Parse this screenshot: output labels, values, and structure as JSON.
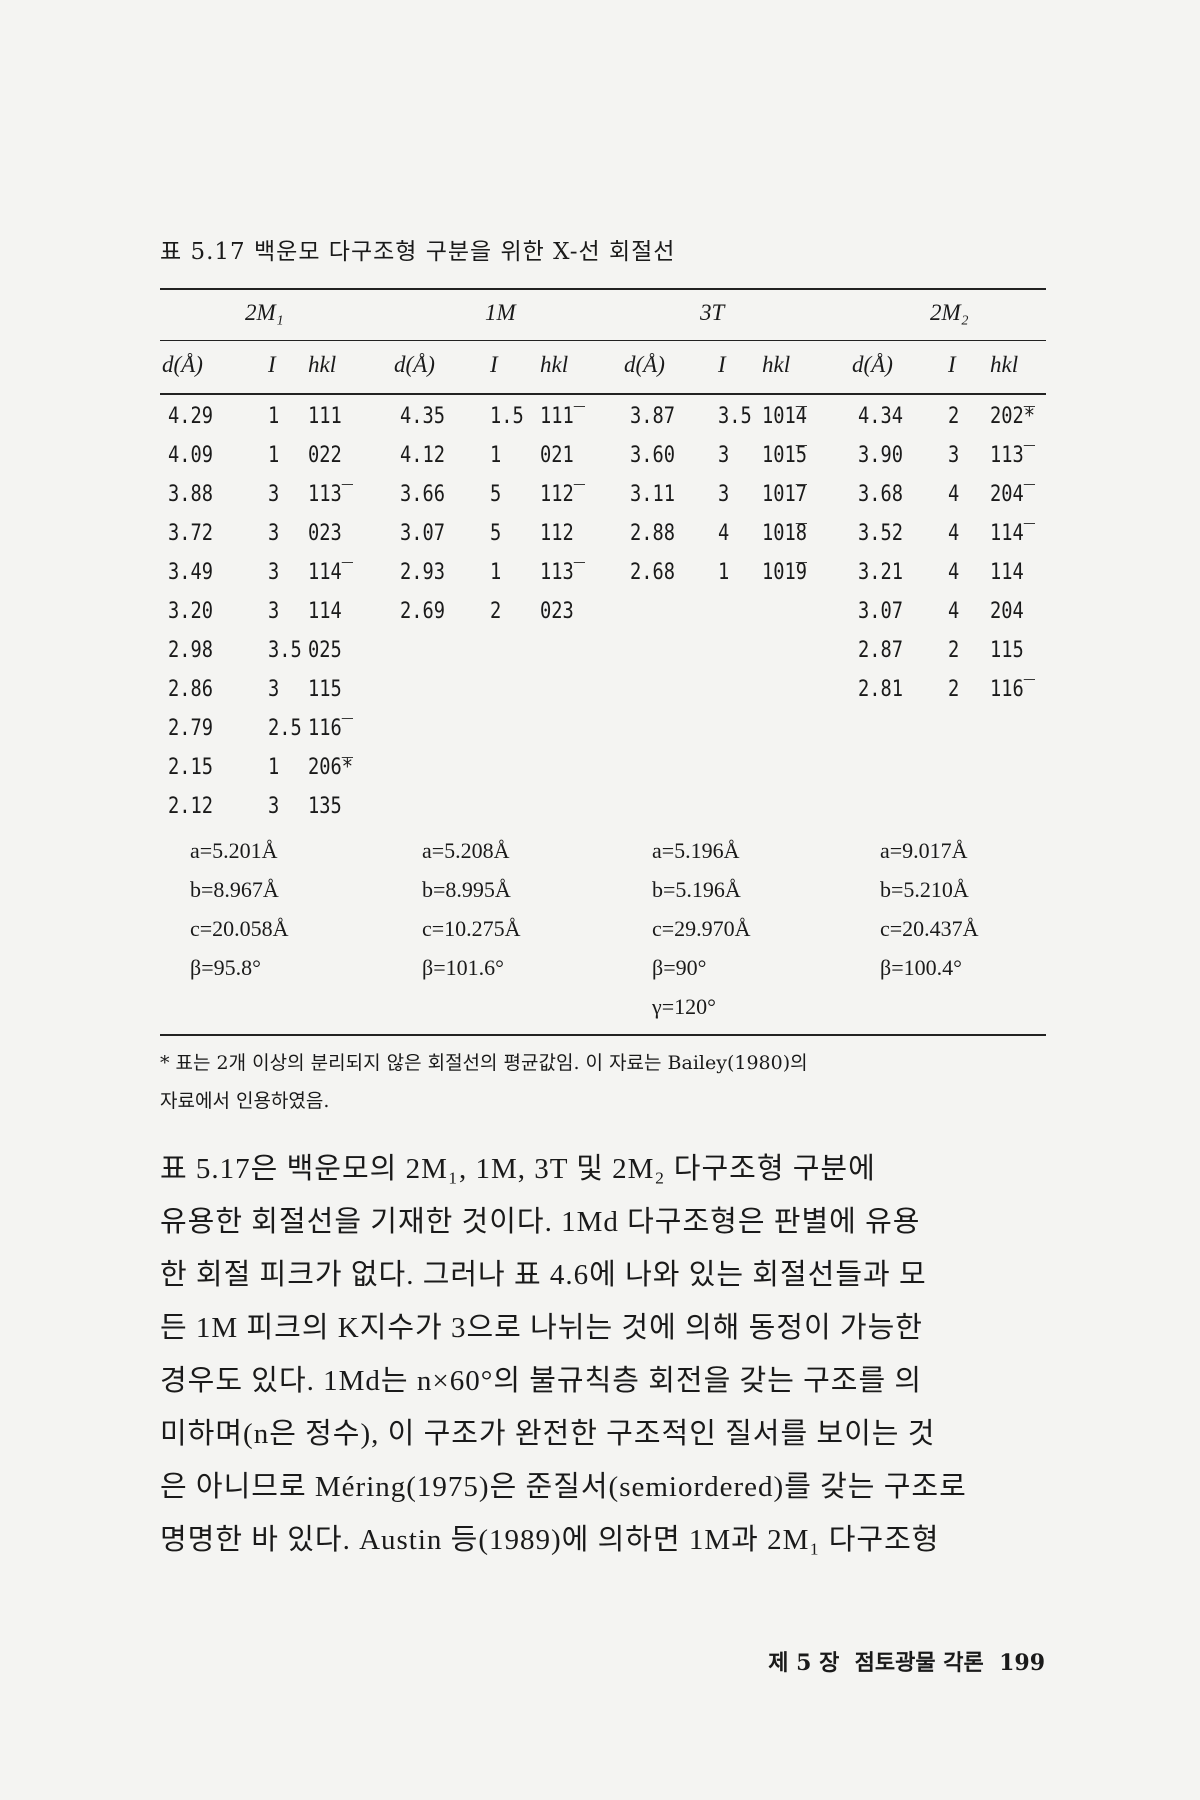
{
  "caption": "표 5.17 백운모 다구조형 구분을 위한 X-선 회절선",
  "table": {
    "groups": [
      "2M₁",
      "1M",
      "3T",
      "2M₂"
    ],
    "col_headers": [
      "d(Å)",
      "I",
      "hkl"
    ],
    "columns": [
      {
        "rows": [
          [
            "4.29",
            "1",
            "111"
          ],
          [
            "4.09",
            "1",
            "022"
          ],
          [
            "3.88",
            "3",
            "113̅"
          ],
          [
            "3.72",
            "3",
            "023"
          ],
          [
            "3.49",
            "3",
            "114̅"
          ],
          [
            "3.20",
            "3",
            "114"
          ],
          [
            "2.98",
            "3.5",
            "025"
          ],
          [
            "2.86",
            "3",
            "115"
          ],
          [
            "2.79",
            "2.5",
            "116̅"
          ],
          [
            "2.15",
            "1",
            "206̅*"
          ],
          [
            "2.12",
            "3",
            "135"
          ]
        ],
        "params": [
          "a=5.201Å",
          "b=8.967Å",
          "c=20.058Å",
          "β=95.8°"
        ]
      },
      {
        "rows": [
          [
            "4.35",
            "1.5",
            "111̅"
          ],
          [
            "4.12",
            "1",
            "021"
          ],
          [
            "3.66",
            "5",
            "112̅"
          ],
          [
            "3.07",
            "5",
            "112"
          ],
          [
            "2.93",
            "1",
            "113̅"
          ],
          [
            "2.69",
            "2",
            "023"
          ]
        ],
        "params": [
          "a=5.208Å",
          "b=8.995Å",
          "c=10.275Å",
          "β=101.6°"
        ]
      },
      {
        "rows": [
          [
            "3.87",
            "3.5",
            "101̅4"
          ],
          [
            "3.60",
            "3",
            "101̅5"
          ],
          [
            "3.11",
            "3",
            "101̅7"
          ],
          [
            "2.88",
            "4",
            "101̅8"
          ],
          [
            "2.68",
            "1",
            "101̅9"
          ]
        ],
        "params": [
          "a=5.196Å",
          "b=5.196Å",
          "c=29.970Å",
          "β=90°",
          "γ=120°"
        ]
      },
      {
        "rows": [
          [
            "4.34",
            "2",
            "202̅*"
          ],
          [
            "3.90",
            "3",
            "113̅"
          ],
          [
            "3.68",
            "4",
            "204̅"
          ],
          [
            "3.52",
            "4",
            "114̅"
          ],
          [
            "3.21",
            "4",
            "114"
          ],
          [
            "3.07",
            "4",
            "204"
          ],
          [
            "2.87",
            "2",
            "115"
          ],
          [
            "2.81",
            "2",
            "116̅"
          ]
        ],
        "params": [
          "a=9.017Å",
          "b=5.210Å",
          "c=20.437Å",
          "β=100.4°"
        ]
      }
    ]
  },
  "footnote": [
    "* 표는 2개 이상의 분리되지 않은 회절선의 평균값임. 이 자료는 Bailey(1980)의",
    "자료에서 인용하였음."
  ],
  "paragraph": [
    "표 5.17은 백운모의 2M₁, 1M, 3T 및 2M₂ 다구조형 구분에",
    "유용한 회절선을 기재한 것이다. 1Md 다구조형은 판별에 유용",
    "한 회절 피크가 없다. 그러나 표 4.6에 나와 있는 회절선들과 모",
    "든 1M 피크의 K지수가 3으로 나뉘는 것에 의해 동정이 가능한",
    "경우도 있다. 1Md는 n×60°의 불규칙층 회전을 갖는 구조를 의",
    "미하며(n은 정수), 이 구조가 완전한 구조적인 질서를 보이는 것",
    "은 아니므로 Méring(1975)은 준질서(semiordered)를 갖는 구조로",
    "명명한 바 있다. Austin 등(1989)에 의하면 1M과 2M₁ 다구조형"
  ],
  "footer": "제 5 장  점토광물 각론  199"
}
